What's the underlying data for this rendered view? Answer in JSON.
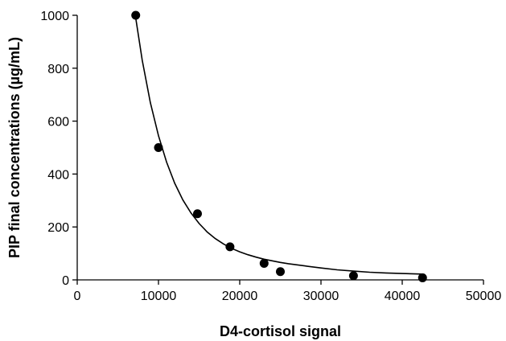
{
  "chart_data": {
    "type": "scatter",
    "title": "",
    "xlabel": "D4-cortisol signal",
    "ylabel": "PIP final concentrations (µg/mL)",
    "xlim": [
      0,
      50000
    ],
    "ylim": [
      0,
      1000
    ],
    "x_ticks": [
      0,
      10000,
      20000,
      30000,
      40000,
      50000
    ],
    "x_tick_labels": [
      "0",
      "10000",
      "20000",
      "30000",
      "40000",
      "50000"
    ],
    "y_ticks": [
      0,
      200,
      400,
      600,
      800,
      1000
    ],
    "y_tick_labels": [
      "0",
      "200",
      "400",
      "600",
      "800",
      "1000"
    ],
    "grid": false,
    "series": [
      {
        "type": "scatter",
        "x": [
          7200,
          10000,
          14800,
          18800,
          23000,
          25000,
          34000,
          42500
        ],
        "y": [
          1000,
          500,
          250,
          125,
          62.5,
          31.25,
          15.6,
          7.8
        ],
        "marker_color": "#000000"
      },
      {
        "type": "line",
        "x": [
          7200,
          8000,
          9000,
          10000,
          11000,
          12000,
          13000,
          14000,
          15000,
          16000,
          17000,
          18000,
          19000,
          20000,
          21000,
          22000,
          23000,
          24000,
          25000,
          26000,
          28000,
          30000,
          32000,
          34000,
          36000,
          38000,
          40000,
          42500
        ],
        "y": [
          990,
          830,
          670,
          545,
          445,
          365,
          302,
          253,
          213,
          181,
          156,
          136,
          119,
          106,
          95,
          86,
          78,
          72,
          66,
          61,
          53,
          45,
          38,
          33,
          29,
          26,
          24,
          22
        ],
        "line_color": "#000000"
      }
    ]
  }
}
